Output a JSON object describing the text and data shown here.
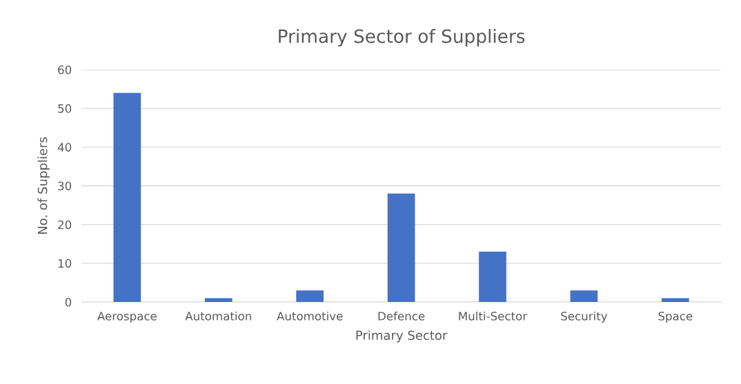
{
  "chart_data": {
    "type": "bar",
    "title": "Primary Sector of Suppliers",
    "xlabel": "Primary Sector",
    "ylabel": "No. of Suppliers",
    "categories": [
      "Aerospace",
      "Automation",
      "Automotive",
      "Defence",
      "Multi-Sector",
      "Security",
      "Space"
    ],
    "values": [
      54,
      1,
      3,
      28,
      13,
      3,
      1
    ],
    "color": "#4472c4",
    "ylim": [
      0,
      60
    ],
    "yticks": [
      0,
      10,
      20,
      30,
      40,
      50,
      60
    ],
    "grid": "y",
    "legend": false
  }
}
